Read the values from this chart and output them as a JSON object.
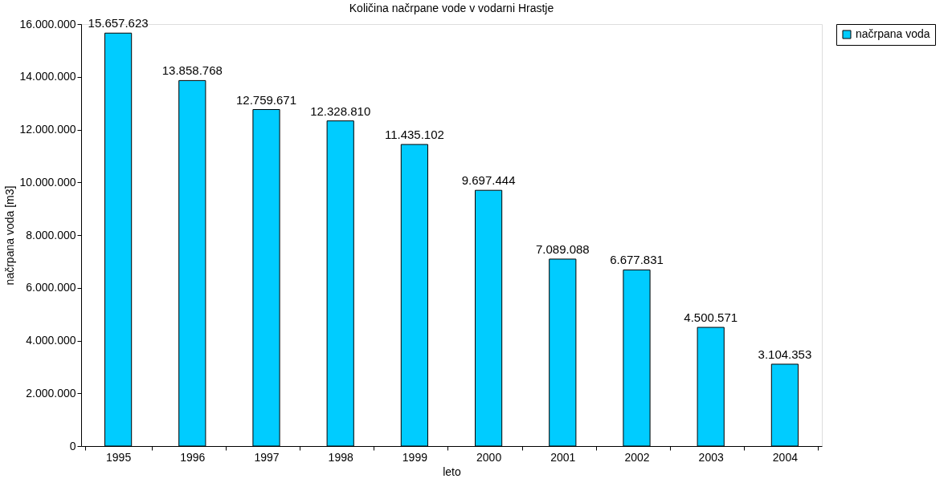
{
  "chart_data": {
    "type": "bar",
    "title": "Količina načrpane vode v vodarni Hrastje",
    "xlabel": "leto",
    "ylabel": "načrpana voda [m3]",
    "categories": [
      "1995",
      "1996",
      "1997",
      "1998",
      "1999",
      "2000",
      "2001",
      "2002",
      "2003",
      "2004"
    ],
    "series": [
      {
        "name": "načrpana voda",
        "color": "#00ccff",
        "values": [
          15657623,
          13858768,
          12759671,
          12328810,
          11435102,
          9697444,
          7089088,
          6677831,
          4500571,
          3104353
        ],
        "value_labels": [
          "15.657.623",
          "13.858.768",
          "12.759.671",
          "12.328.810",
          "11.435.102",
          "9.697.444",
          "7.089.088",
          "6.677.831",
          "4.500.571",
          "3.104.353"
        ]
      }
    ],
    "ylim": [
      0,
      16000000
    ],
    "yticks": [
      0,
      {
        "value": 2000000,
        "label": "2.000.000"
      },
      {
        "value": 4000000,
        "label": "4.000.000"
      },
      {
        "value": 6000000,
        "label": "6.000.000"
      },
      {
        "value": 8000000,
        "label": "8.000.000"
      },
      {
        "value": 10000000,
        "label": "10.000.000"
      },
      {
        "value": 12000000,
        "label": "12.000.000"
      },
      {
        "value": 14000000,
        "label": "14.000.000"
      },
      {
        "value": 16000000,
        "label": "16.000.000"
      }
    ],
    "grid": false,
    "legend": "right"
  }
}
